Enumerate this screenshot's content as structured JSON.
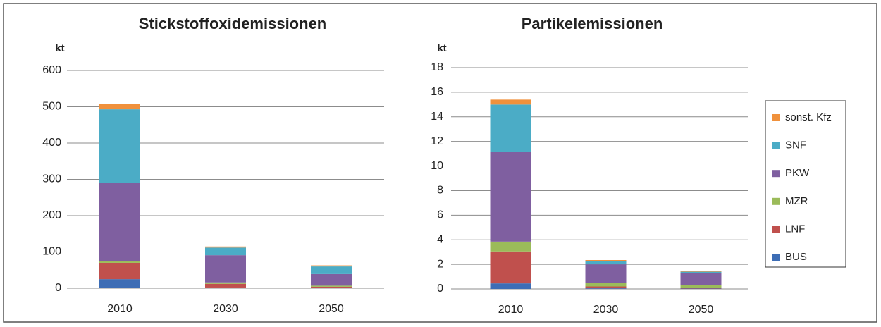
{
  "chart_data": [
    {
      "type": "stacked_bar",
      "title": "Stickstoffoxidemissionen",
      "y_label": "kt",
      "categories": [
        "2010",
        "2030",
        "2050"
      ],
      "series": [
        {
          "color": "#3d6db5",
          "values": [
            25,
            2,
            1
          ]
        },
        {
          "color": "#c0504d",
          "values": [
            45,
            10,
            3
          ]
        },
        {
          "color": "#9bbb59",
          "values": [
            5,
            4,
            3
          ]
        },
        {
          "color": "#7f5fa0",
          "values": [
            216,
            75,
            32
          ]
        },
        {
          "color": "#4bacc6",
          "values": [
            202,
            21,
            21
          ]
        },
        {
          "color": "#f0913c",
          "values": [
            14,
            3,
            3
          ]
        }
      ],
      "ylim": [
        0,
        600
      ],
      "yticks": [
        0,
        100,
        200,
        300,
        400,
        500,
        600
      ],
      "grid": true
    },
    {
      "type": "stacked_bar",
      "title": "Partikelemissionen",
      "y_label": "kt",
      "categories": [
        "2010",
        "2030",
        "2050"
      ],
      "series": [
        {
          "name": "BUS",
          "color": "#3d6db5",
          "values": [
            0.45,
            0.05,
            0.03
          ]
        },
        {
          "name": "LNF",
          "color": "#c0504d",
          "values": [
            2.6,
            0.15,
            0.05
          ]
        },
        {
          "name": "MZR",
          "color": "#9bbb59",
          "values": [
            0.8,
            0.3,
            0.25
          ]
        },
        {
          "name": "PKW",
          "color": "#7f5fa0",
          "values": [
            7.3,
            1.5,
            0.97
          ]
        },
        {
          "name": "SNF",
          "color": "#4bacc6",
          "values": [
            3.85,
            0.25,
            0.1
          ]
        },
        {
          "name": "sonst. Kfz",
          "color": "#f0913c",
          "values": [
            0.4,
            0.1,
            0.05
          ]
        }
      ],
      "ylim": [
        0,
        18
      ],
      "yticks": [
        0,
        2,
        4,
        6,
        8,
        10,
        12,
        14,
        16,
        18
      ],
      "grid": true,
      "legend": "right"
    }
  ]
}
